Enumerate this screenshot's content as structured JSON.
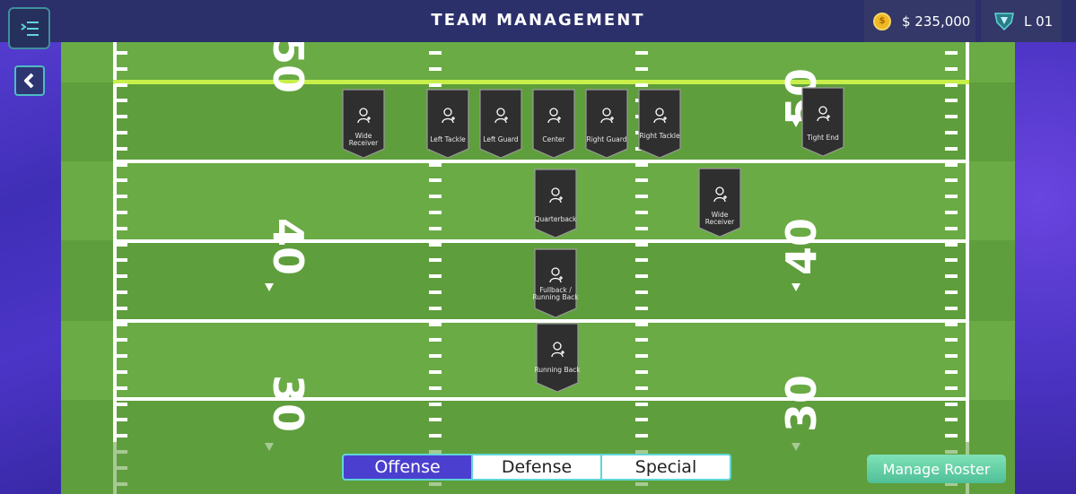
{
  "header": {
    "title": "TEAM MANAGEMENT",
    "coins": "$ 235,000",
    "coin_symbol": "$",
    "level": "L 01"
  },
  "icons": {
    "menu": "menu-icon",
    "back": "chevron-left-icon",
    "coin": "coin-icon",
    "level": "shield-badge-icon",
    "player": "add-player-icon"
  },
  "field": {
    "numbers": [
      "50",
      "50",
      "40",
      "40",
      "30",
      "30"
    ]
  },
  "positions": [
    {
      "label": "Wide Receiver"
    },
    {
      "label": "Left Tackle"
    },
    {
      "label": "Left Guard"
    },
    {
      "label": "Center"
    },
    {
      "label": "Right Guard"
    },
    {
      "label": "Right Tackle"
    },
    {
      "label": "Tight End"
    },
    {
      "label": "Quarterback"
    },
    {
      "label": "Wide Receiver"
    },
    {
      "label": "Fullback / Running Back"
    },
    {
      "label": "Running Back"
    }
  ],
  "tabs": [
    {
      "label": "Offense",
      "selected": true
    },
    {
      "label": "Defense",
      "selected": false
    },
    {
      "label": "Special",
      "selected": false
    }
  ],
  "manage_roster": "Manage Roster",
  "colors": {
    "accent": "#4b3fcf",
    "teal": "#5fd6d6",
    "field_dark": "#5f9e3c",
    "field_light": "#6aab45",
    "scrimmage": "#c8f04a"
  }
}
